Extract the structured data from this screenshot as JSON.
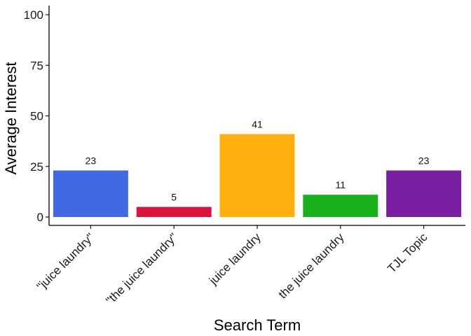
{
  "chart_data": {
    "type": "bar",
    "title": "",
    "xlabel": "Search Term",
    "ylabel": "Average Interest",
    "ylim": [
      0,
      100
    ],
    "yticks": [
      0,
      25,
      50,
      75,
      100
    ],
    "grid": false,
    "legend": "none",
    "categories": [
      "\"juice laundry\"",
      "\"the juice laundry\"",
      "juice laundry",
      "the juice laundry",
      "TJL Topic"
    ],
    "values": [
      23,
      5,
      41,
      11,
      23
    ],
    "data_labels": [
      "23",
      "5",
      "41",
      "11",
      "23"
    ],
    "colors": [
      "#4169E1",
      "#DC143C",
      "#FFB00F",
      "#19B01E",
      "#7B1FA2"
    ]
  }
}
